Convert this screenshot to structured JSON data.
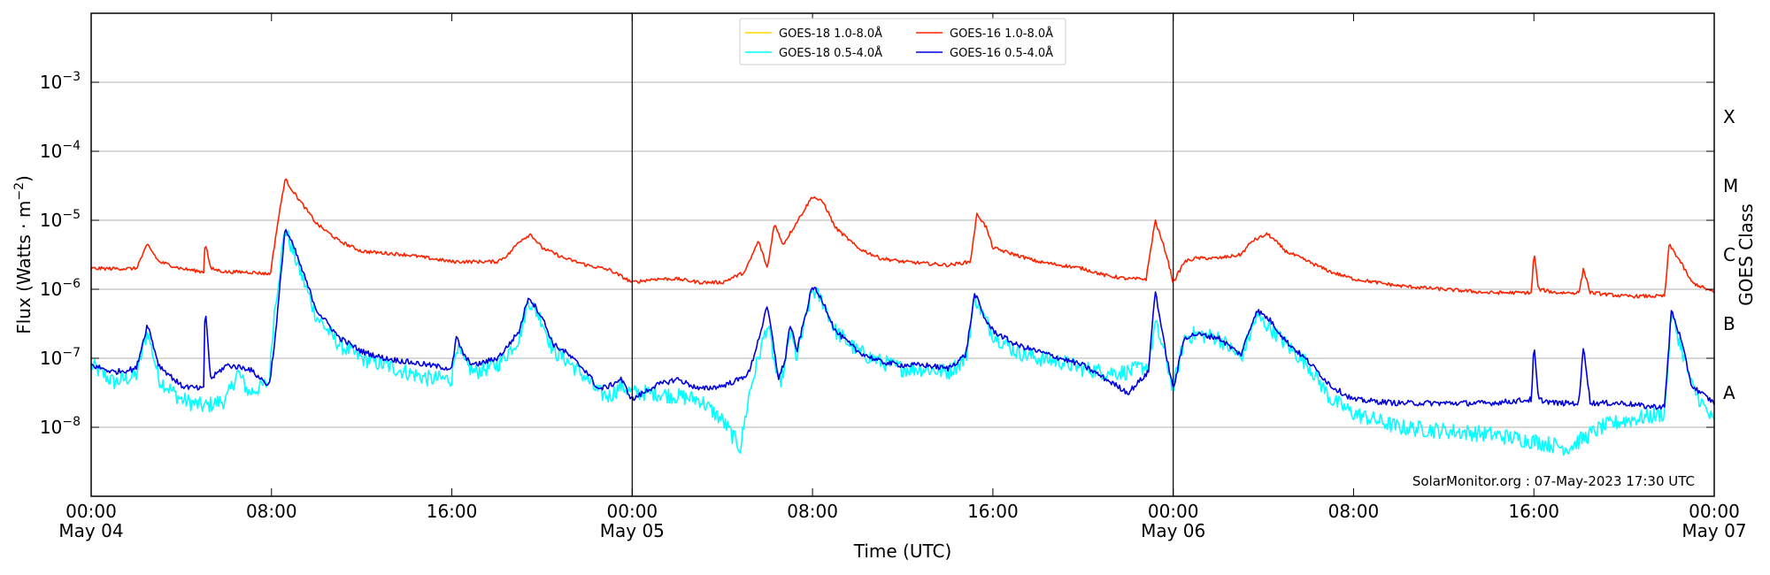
{
  "chart_data": {
    "type": "line",
    "xlabel": "Time (UTC)",
    "ylabel_main": "Flux (Watts",
    "ylabel_unit": "m",
    "ylabel_exp": "−2",
    "ylabel_sep": "·",
    "right_label": "GOES Class",
    "watermark": "SolarMonitor.org : 07-May-2023 17:30 UTC",
    "x_range_hours": [
      0,
      72
    ],
    "y_log_range": [
      -9,
      -2
    ],
    "y_log_scale": true,
    "grid": "horizontal",
    "legend_placement": "top-center",
    "day_separators_hours": [
      24,
      48
    ],
    "x_ticks": [
      {
        "h": 0,
        "time": "00:00",
        "date": "May 04"
      },
      {
        "h": 8,
        "time": "08:00",
        "date": ""
      },
      {
        "h": 16,
        "time": "16:00",
        "date": ""
      },
      {
        "h": 24,
        "time": "00:00",
        "date": "May 05"
      },
      {
        "h": 32,
        "time": "08:00",
        "date": ""
      },
      {
        "h": 40,
        "time": "16:00",
        "date": ""
      },
      {
        "h": 48,
        "time": "00:00",
        "date": "May 06"
      },
      {
        "h": 56,
        "time": "08:00",
        "date": ""
      },
      {
        "h": 64,
        "time": "16:00",
        "date": ""
      },
      {
        "h": 72,
        "time": "00:00",
        "date": "May 07"
      }
    ],
    "y_ticks": [
      {
        "exp": -8,
        "base": "10",
        "sup": "−8"
      },
      {
        "exp": -7,
        "base": "10",
        "sup": "−7"
      },
      {
        "exp": -6,
        "base": "10",
        "sup": "−6"
      },
      {
        "exp": -5,
        "base": "10",
        "sup": "−5"
      },
      {
        "exp": -4,
        "base": "10",
        "sup": "−4"
      },
      {
        "exp": -3,
        "base": "10",
        "sup": "−3"
      }
    ],
    "goes_classes": [
      {
        "label": "A",
        "exp": -7.5
      },
      {
        "label": "B",
        "exp": -6.5
      },
      {
        "label": "C",
        "exp": -5.5
      },
      {
        "label": "M",
        "exp": -4.5
      },
      {
        "label": "X",
        "exp": -3.5
      }
    ],
    "colors": {
      "goes18_long": "#FFD700",
      "goes18_short": "#00FFFF",
      "goes16_long": "#FF2200",
      "goes16_short": "#0000DD",
      "grid": "#b0b0b0",
      "separator": "#000000"
    },
    "series": [
      {
        "name": "GOES-18 1.0-8.0Å",
        "key": "goes18_long",
        "points": []
      },
      {
        "name": "GOES-18 0.5-4.0Å",
        "key": "goes18_short",
        "noise": 0.12,
        "points": [
          [
            0,
            -7.1
          ],
          [
            1,
            -7.35
          ],
          [
            2,
            -7.25
          ],
          [
            2.5,
            -6.6
          ],
          [
            3,
            -7.3
          ],
          [
            4,
            -7.6
          ],
          [
            5,
            -7.7
          ],
          [
            6,
            -7.6
          ],
          [
            6.5,
            -7.2
          ],
          [
            7,
            -7.5
          ],
          [
            7.9,
            -7.35
          ],
          [
            8.1,
            -6.4
          ],
          [
            8.6,
            -5.12
          ],
          [
            9,
            -5.5
          ],
          [
            10,
            -6.4
          ],
          [
            11,
            -6.8
          ],
          [
            12,
            -7.0
          ],
          [
            13,
            -7.1
          ],
          [
            14,
            -7.2
          ],
          [
            15,
            -7.3
          ],
          [
            16,
            -7.3
          ],
          [
            16.2,
            -6.8
          ],
          [
            16.6,
            -7.1
          ],
          [
            17,
            -7.2
          ],
          [
            18,
            -7.1
          ],
          [
            18.3,
            -7.0
          ],
          [
            19,
            -6.7
          ],
          [
            19.4,
            -6.15
          ],
          [
            20,
            -6.45
          ],
          [
            20.5,
            -6.9
          ],
          [
            21,
            -7.0
          ],
          [
            22,
            -7.3
          ],
          [
            22.5,
            -7.5
          ],
          [
            23,
            -7.55
          ],
          [
            23.5,
            -7.4
          ],
          [
            24,
            -7.5
          ],
          [
            25,
            -7.5
          ],
          [
            26,
            -7.55
          ],
          [
            27,
            -7.6
          ],
          [
            28,
            -7.9
          ],
          [
            28.8,
            -8.3
          ],
          [
            29.2,
            -7.5
          ],
          [
            30,
            -6.5
          ],
          [
            30.5,
            -7.4
          ],
          [
            30.8,
            -7.1
          ],
          [
            31,
            -6.6
          ],
          [
            31.3,
            -7.0
          ],
          [
            32,
            -6.0
          ],
          [
            32.5,
            -6.2
          ],
          [
            33,
            -6.6
          ],
          [
            34,
            -6.9
          ],
          [
            35,
            -7.05
          ],
          [
            36,
            -7.15
          ],
          [
            37,
            -7.15
          ],
          [
            38,
            -7.2
          ],
          [
            38.8,
            -7.0
          ],
          [
            39.2,
            -6.1
          ],
          [
            39.6,
            -6.4
          ],
          [
            40,
            -6.65
          ],
          [
            41,
            -6.9
          ],
          [
            42,
            -7.0
          ],
          [
            43,
            -7.05
          ],
          [
            44,
            -7.15
          ],
          [
            45,
            -7.2
          ],
          [
            46,
            -7.2
          ],
          [
            46.9,
            -7.1
          ],
          [
            47.2,
            -6.5
          ],
          [
            47.6,
            -6.9
          ],
          [
            48,
            -7.45
          ],
          [
            48.5,
            -6.7
          ],
          [
            49,
            -6.65
          ],
          [
            50,
            -6.7
          ],
          [
            51,
            -7.0
          ],
          [
            51.7,
            -6.4
          ],
          [
            52.3,
            -6.55
          ],
          [
            53,
            -6.8
          ],
          [
            54,
            -7.1
          ],
          [
            55,
            -7.6
          ],
          [
            56,
            -7.8
          ],
          [
            58,
            -8.0
          ],
          [
            60,
            -8.05
          ],
          [
            62,
            -8.1
          ],
          [
            64,
            -8.2
          ],
          [
            65.5,
            -8.3
          ],
          [
            67,
            -8.0
          ],
          [
            68,
            -7.9
          ],
          [
            69,
            -7.85
          ],
          [
            69.8,
            -7.8
          ],
          [
            70.1,
            -6.35
          ],
          [
            70.5,
            -6.8
          ],
          [
            71,
            -7.4
          ],
          [
            72,
            -7.95
          ]
        ]
      },
      {
        "name": "GOES-16 1.0-8.0Å",
        "key": "goes16_long",
        "noise": 0.025,
        "points": [
          [
            0,
            -5.7
          ],
          [
            2,
            -5.7
          ],
          [
            2.5,
            -5.35
          ],
          [
            3,
            -5.6
          ],
          [
            4,
            -5.7
          ],
          [
            5,
            -5.75
          ],
          [
            5.05,
            -5.3
          ],
          [
            5.3,
            -5.7
          ],
          [
            6,
            -5.75
          ],
          [
            7,
            -5.75
          ],
          [
            7.95,
            -5.78
          ],
          [
            8.2,
            -5.2
          ],
          [
            8.6,
            -4.4
          ],
          [
            9,
            -4.6
          ],
          [
            10,
            -5.05
          ],
          [
            11,
            -5.3
          ],
          [
            12,
            -5.45
          ],
          [
            14,
            -5.5
          ],
          [
            15,
            -5.55
          ],
          [
            16,
            -5.6
          ],
          [
            18,
            -5.6
          ],
          [
            18.5,
            -5.5
          ],
          [
            19,
            -5.3
          ],
          [
            19.5,
            -5.2
          ],
          [
            20,
            -5.4
          ],
          [
            21,
            -5.55
          ],
          [
            22,
            -5.65
          ],
          [
            23,
            -5.72
          ],
          [
            24,
            -5.9
          ],
          [
            25,
            -5.85
          ],
          [
            26,
            -5.85
          ],
          [
            27,
            -5.9
          ],
          [
            28,
            -5.9
          ],
          [
            29,
            -5.75
          ],
          [
            29.6,
            -5.3
          ],
          [
            30,
            -5.7
          ],
          [
            30.3,
            -5.05
          ],
          [
            30.7,
            -5.35
          ],
          [
            32,
            -4.65
          ],
          [
            32.5,
            -4.75
          ],
          [
            33,
            -5.1
          ],
          [
            34,
            -5.4
          ],
          [
            35,
            -5.55
          ],
          [
            36,
            -5.6
          ],
          [
            38,
            -5.65
          ],
          [
            39,
            -5.6
          ],
          [
            39.3,
            -4.9
          ],
          [
            39.7,
            -5.1
          ],
          [
            40,
            -5.4
          ],
          [
            41,
            -5.5
          ],
          [
            42,
            -5.6
          ],
          [
            44,
            -5.7
          ],
          [
            45,
            -5.8
          ],
          [
            46,
            -5.85
          ],
          [
            46.8,
            -5.85
          ],
          [
            47.2,
            -5.0
          ],
          [
            47.7,
            -5.5
          ],
          [
            48,
            -5.9
          ],
          [
            48.5,
            -5.6
          ],
          [
            49,
            -5.55
          ],
          [
            50,
            -5.55
          ],
          [
            51,
            -5.5
          ],
          [
            51.5,
            -5.3
          ],
          [
            52.2,
            -5.2
          ],
          [
            53,
            -5.45
          ],
          [
            54,
            -5.6
          ],
          [
            55,
            -5.75
          ],
          [
            56,
            -5.85
          ],
          [
            58,
            -5.95
          ],
          [
            60,
            -6.0
          ],
          [
            62,
            -6.05
          ],
          [
            63.9,
            -6.05
          ],
          [
            64,
            -5.45
          ],
          [
            64.2,
            -6.0
          ],
          [
            65,
            -6.05
          ],
          [
            66,
            -6.05
          ],
          [
            66.2,
            -5.7
          ],
          [
            66.5,
            -6.05
          ],
          [
            68,
            -6.1
          ],
          [
            69,
            -6.1
          ],
          [
            69.8,
            -6.1
          ],
          [
            70,
            -5.35
          ],
          [
            70.5,
            -5.6
          ],
          [
            71,
            -5.9
          ],
          [
            72,
            -6.05
          ]
        ]
      },
      {
        "name": "GOES-16 0.5-4.0Å",
        "key": "goes16_short",
        "noise": 0.04,
        "points": [
          [
            0,
            -7.1
          ],
          [
            1,
            -7.2
          ],
          [
            2,
            -7.15
          ],
          [
            2.5,
            -6.5
          ],
          [
            3,
            -7.1
          ],
          [
            4,
            -7.4
          ],
          [
            5,
            -7.45
          ],
          [
            5.05,
            -6.2
          ],
          [
            5.3,
            -7.3
          ],
          [
            6,
            -7.1
          ],
          [
            7,
            -7.15
          ],
          [
            7.9,
            -7.4
          ],
          [
            8.2,
            -6.6
          ],
          [
            8.6,
            -5.12
          ],
          [
            9,
            -5.4
          ],
          [
            10,
            -6.3
          ],
          [
            11,
            -6.7
          ],
          [
            12,
            -6.9
          ],
          [
            13,
            -7.0
          ],
          [
            14,
            -7.05
          ],
          [
            15,
            -7.1
          ],
          [
            16,
            -7.15
          ],
          [
            16.2,
            -6.7
          ],
          [
            16.6,
            -7.0
          ],
          [
            17,
            -7.1
          ],
          [
            18,
            -7.0
          ],
          [
            18.3,
            -6.9
          ],
          [
            19,
            -6.6
          ],
          [
            19.4,
            -6.1
          ],
          [
            20,
            -6.4
          ],
          [
            20.5,
            -6.8
          ],
          [
            21,
            -6.9
          ],
          [
            22,
            -7.2
          ],
          [
            22.5,
            -7.45
          ],
          [
            23,
            -7.4
          ],
          [
            23.5,
            -7.3
          ],
          [
            24,
            -7.6
          ],
          [
            25,
            -7.4
          ],
          [
            26,
            -7.3
          ],
          [
            27,
            -7.45
          ],
          [
            28,
            -7.4
          ],
          [
            28.8,
            -7.3
          ],
          [
            29.2,
            -7.2
          ],
          [
            30,
            -6.25
          ],
          [
            30.5,
            -7.3
          ],
          [
            30.8,
            -7.0
          ],
          [
            31,
            -6.5
          ],
          [
            31.3,
            -6.9
          ],
          [
            32,
            -5.95
          ],
          [
            32.5,
            -6.2
          ],
          [
            33,
            -6.6
          ],
          [
            34,
            -6.9
          ],
          [
            35,
            -7.05
          ],
          [
            36,
            -7.1
          ],
          [
            37,
            -7.1
          ],
          [
            38,
            -7.15
          ],
          [
            38.8,
            -6.95
          ],
          [
            39.2,
            -6.05
          ],
          [
            39.6,
            -6.4
          ],
          [
            40,
            -6.6
          ],
          [
            41,
            -6.8
          ],
          [
            42,
            -6.9
          ],
          [
            43,
            -7.0
          ],
          [
            44,
            -7.1
          ],
          [
            45,
            -7.3
          ],
          [
            46,
            -7.5
          ],
          [
            46.9,
            -7.2
          ],
          [
            47.2,
            -6.0
          ],
          [
            47.6,
            -6.8
          ],
          [
            48,
            -7.45
          ],
          [
            48.5,
            -6.7
          ],
          [
            49,
            -6.65
          ],
          [
            50,
            -6.7
          ],
          [
            51,
            -6.95
          ],
          [
            51.7,
            -6.3
          ],
          [
            52.3,
            -6.45
          ],
          [
            53,
            -6.75
          ],
          [
            54,
            -7.05
          ],
          [
            55,
            -7.4
          ],
          [
            56,
            -7.6
          ],
          [
            58,
            -7.65
          ],
          [
            60,
            -7.65
          ],
          [
            62,
            -7.65
          ],
          [
            63.9,
            -7.6
          ],
          [
            64,
            -6.8
          ],
          [
            64.2,
            -7.6
          ],
          [
            65,
            -7.65
          ],
          [
            66,
            -7.65
          ],
          [
            66.2,
            -6.8
          ],
          [
            66.5,
            -7.65
          ],
          [
            68,
            -7.65
          ],
          [
            69,
            -7.7
          ],
          [
            69.8,
            -7.7
          ],
          [
            70.1,
            -6.3
          ],
          [
            70.5,
            -6.7
          ],
          [
            71,
            -7.4
          ],
          [
            72,
            -7.65
          ]
        ]
      }
    ]
  }
}
